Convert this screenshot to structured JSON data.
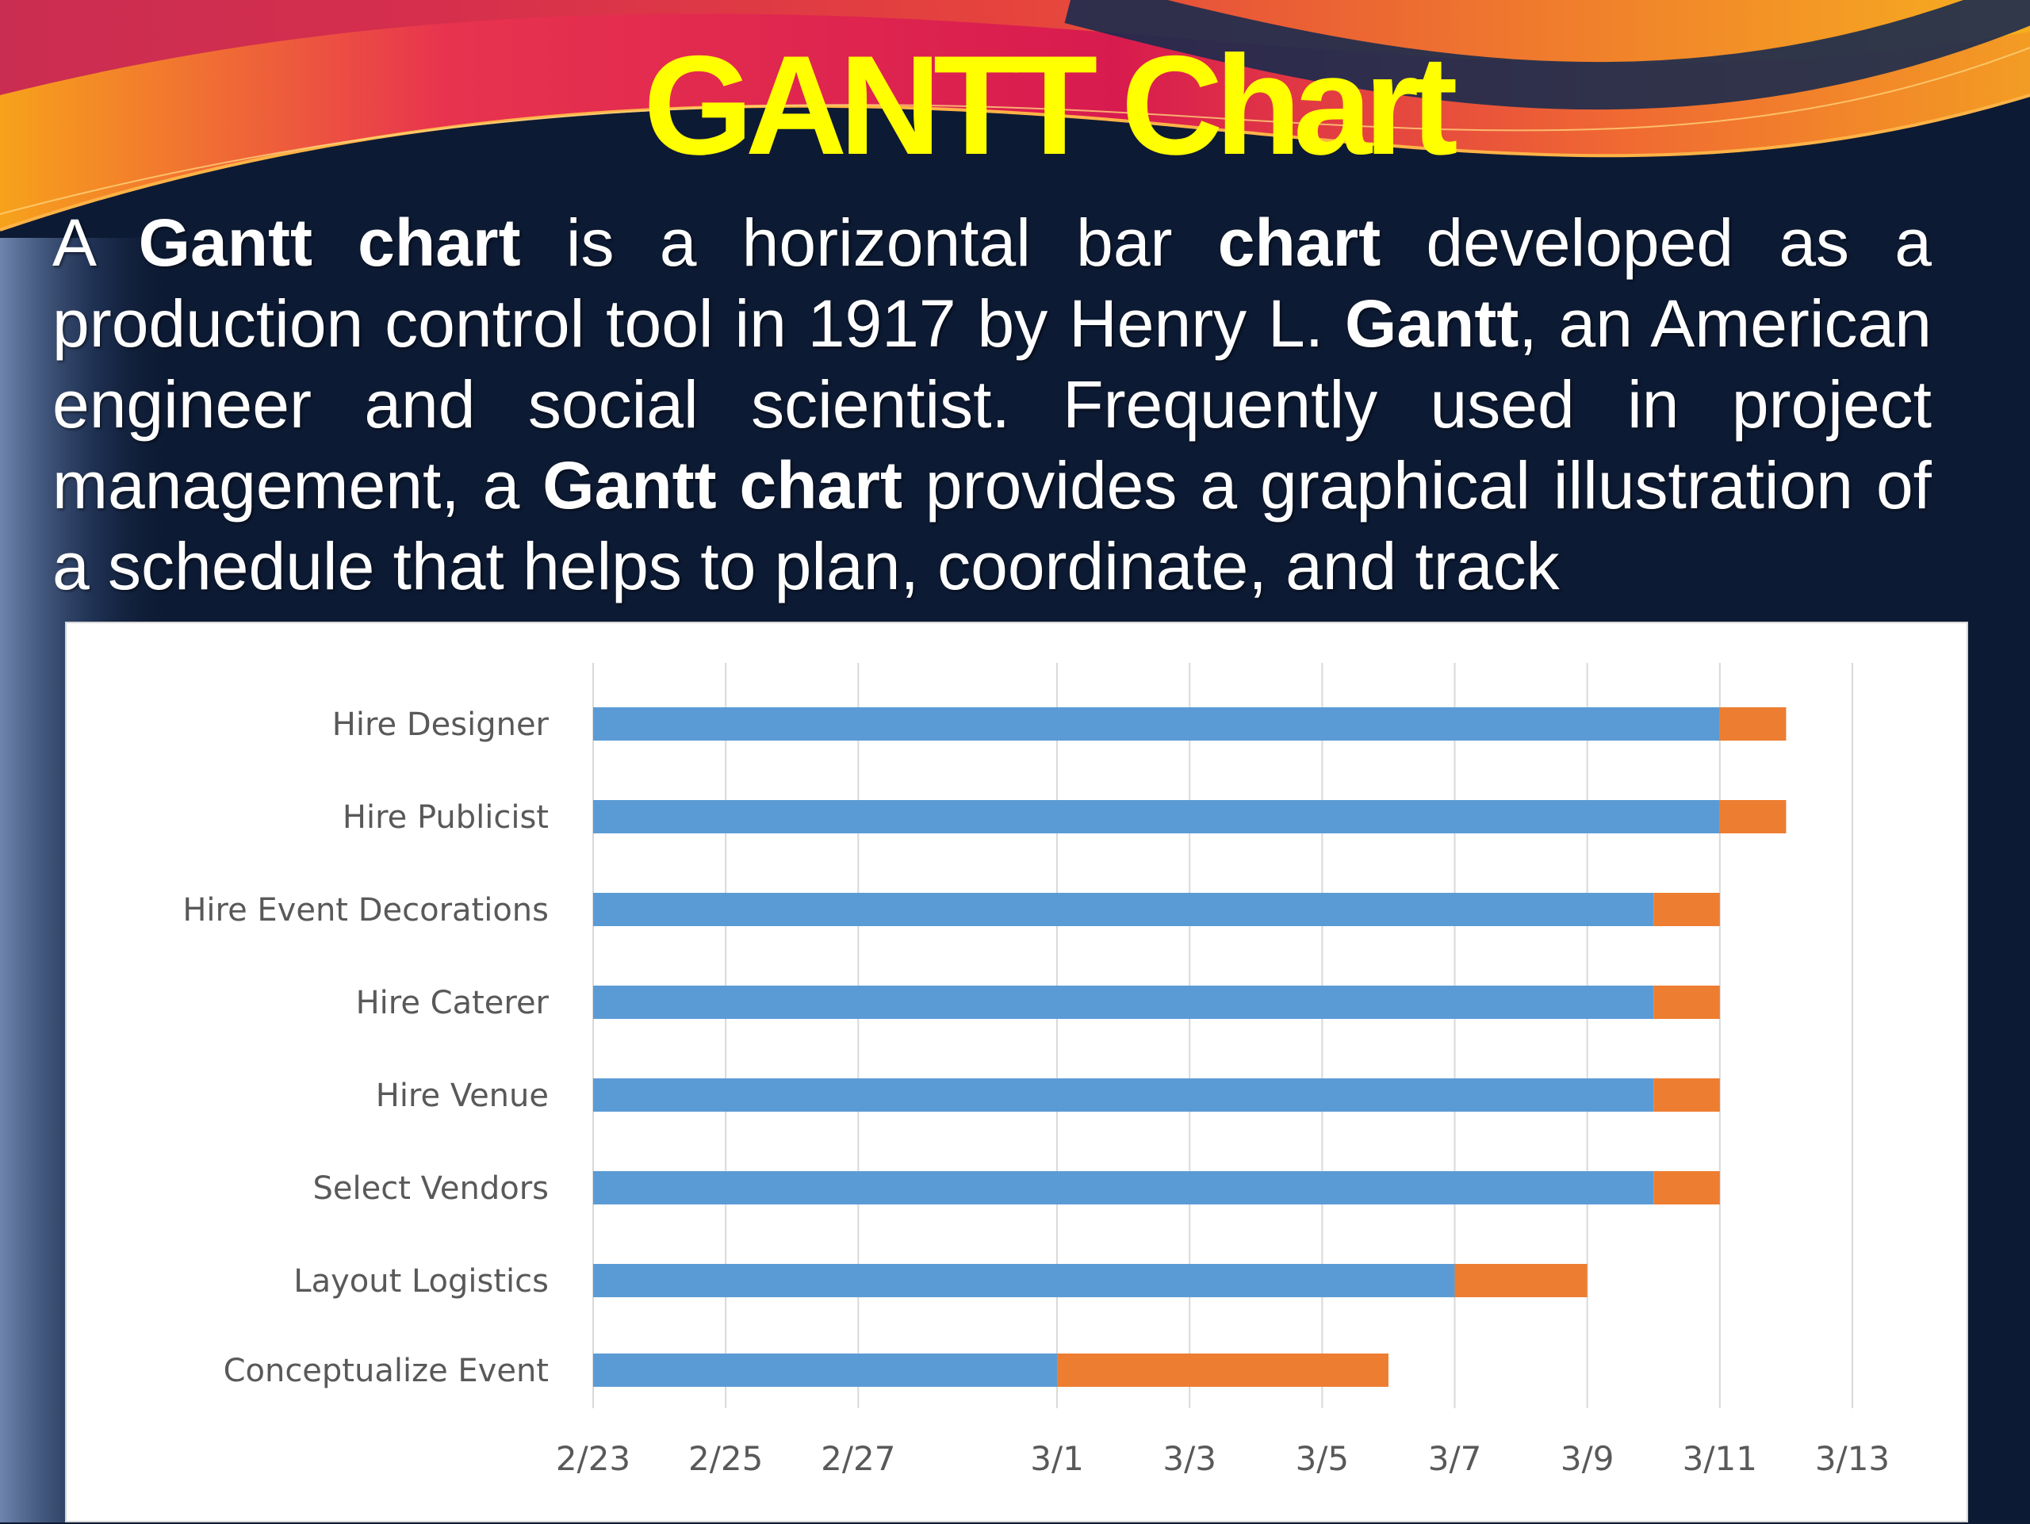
{
  "slide": {
    "title": "GANTT Chart",
    "body": [
      {
        "text": "A ",
        "bold": false
      },
      {
        "text": "Gantt chart",
        "bold": true
      },
      {
        "text": " is a horizontal bar ",
        "bold": false
      },
      {
        "text": "chart",
        "bold": true
      },
      {
        "text": " developed as a production control tool in 1917 by Henry L. ",
        "bold": false
      },
      {
        "text": "Gantt",
        "bold": true
      },
      {
        "text": ", an American engineer and social scientist. Frequently used in project management, a ",
        "bold": false
      },
      {
        "text": "Gantt chart",
        "bold": true
      },
      {
        "text": " provides a graphical illustration of a schedule that helps to plan, coordinate, and track",
        "bold": false
      }
    ]
  },
  "colors": {
    "start_series": "#5b9bd5",
    "duration_series": "#ed7d31",
    "title": "#ffff00",
    "background": "#0d1a33",
    "gridline": "#d9d9d9"
  },
  "chart_data": {
    "type": "bar",
    "orientation": "horizontal",
    "stacked": true,
    "categories": [
      "Hire Designer",
      "Hire Publicist",
      "Hire Event Decorations",
      "Hire Caterer",
      "Hire Venue",
      "Select Vendors",
      "Layout Logistics",
      "Conceptualize Event"
    ],
    "x_ticks": [
      "2/23",
      "2/25",
      "2/27",
      "3/1",
      "3/3",
      "3/5",
      "3/7",
      "3/9",
      "3/11",
      "3/13"
    ],
    "x_tick_dates": [
      "2/23",
      "2/25",
      "2/27",
      "3/1",
      "3/3",
      "3/5",
      "3/7",
      "3/9",
      "3/11",
      "3/13"
    ],
    "xlim": [
      "2/23",
      "3/13"
    ],
    "tasks": [
      {
        "name": "Hire Designer",
        "start": "2/23",
        "duration_start": "3/11",
        "end": "3/12"
      },
      {
        "name": "Hire Publicist",
        "start": "2/23",
        "duration_start": "3/11",
        "end": "3/12"
      },
      {
        "name": "Hire Event Decorations",
        "start": "2/23",
        "duration_start": "3/10",
        "end": "3/11"
      },
      {
        "name": "Hire Caterer",
        "start": "2/23",
        "duration_start": "3/10",
        "end": "3/11"
      },
      {
        "name": "Hire Venue",
        "start": "2/23",
        "duration_start": "3/10",
        "end": "3/11"
      },
      {
        "name": "Select Vendors",
        "start": "2/23",
        "duration_start": "3/10",
        "end": "3/11"
      },
      {
        "name": "Layout Logistics",
        "start": "2/23",
        "duration_start": "3/7",
        "end": "3/9"
      },
      {
        "name": "Conceptualize Event",
        "start": "2/23",
        "duration_start": "3/1",
        "end": "3/6"
      }
    ],
    "title": "",
    "xlabel": "",
    "ylabel": "",
    "grid": "vertical",
    "legend": "none"
  }
}
